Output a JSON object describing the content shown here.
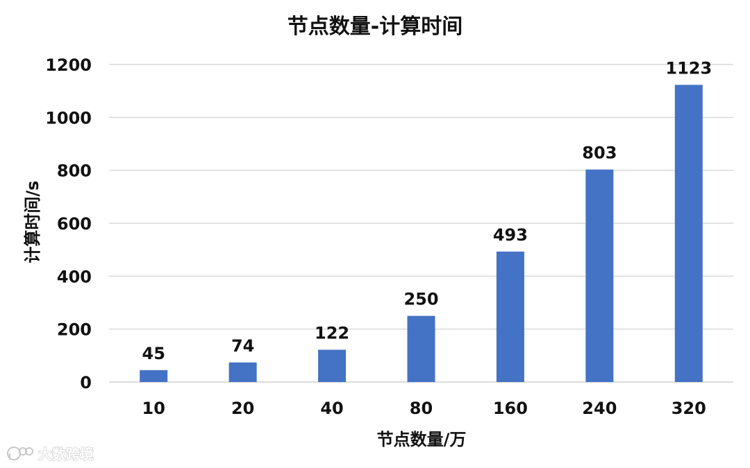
{
  "chart_data": {
    "type": "bar",
    "title": "节点数量-计算时间",
    "xlabel": "节点数量/万",
    "ylabel": "计算时间/s",
    "categories": [
      "10",
      "20",
      "40",
      "80",
      "160",
      "240",
      "320"
    ],
    "values": [
      45,
      74,
      122,
      250,
      493,
      803,
      1123
    ],
    "ylim": [
      0,
      1200
    ],
    "yticks": [
      0,
      200,
      400,
      600,
      800,
      1000,
      1200
    ],
    "grid": true,
    "bar_color": "#4472C4",
    "data_labels": true
  },
  "watermark": {
    "text": "大数跨境",
    "icon": "logo-icon"
  }
}
